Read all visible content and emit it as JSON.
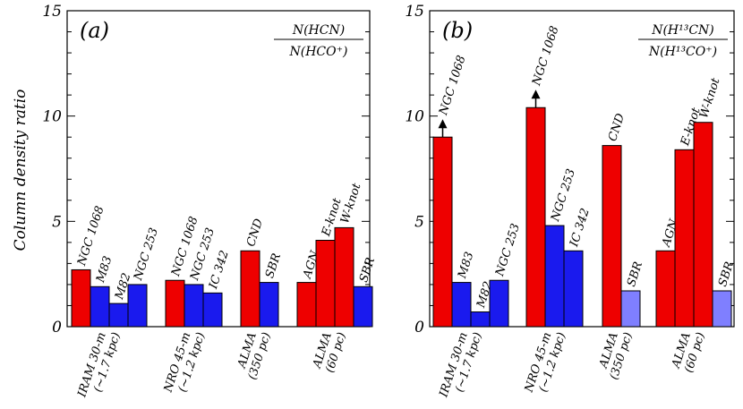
{
  "ylabel": "Column density ratio",
  "chart_data": [
    {
      "type": "bar",
      "panel_label": "(a)",
      "ratio_numerator": "N(HCN)",
      "ratio_denominator": "N(HCO⁺)",
      "ylim": [
        0,
        15
      ],
      "yticks": [
        "0",
        "5",
        "10",
        "15"
      ],
      "groups": [
        {
          "label_line1": "IRAM 30-m",
          "label_line2": "(~1.7 kpc)",
          "bars": [
            {
              "name": "NGC 1068",
              "value": 2.7,
              "color": "#ee0000"
            },
            {
              "name": "M83",
              "value": 1.9,
              "color": "#1a1aee"
            },
            {
              "name": "M82",
              "value": 1.1,
              "color": "#1a1aee"
            },
            {
              "name": "NGC 253",
              "value": 2.0,
              "color": "#1a1aee"
            }
          ]
        },
        {
          "label_line1": "NRO 45-m",
          "label_line2": "(~1.2 kpc)",
          "bars": [
            {
              "name": "NGC 1068",
              "value": 2.2,
              "color": "#ee0000"
            },
            {
              "name": "NGC 253",
              "value": 2.0,
              "color": "#1a1aee"
            },
            {
              "name": "IC 342",
              "value": 1.6,
              "color": "#1a1aee"
            }
          ]
        },
        {
          "label_line1": "ALMA",
          "label_line2": "(350 pc)",
          "bars": [
            {
              "name": "CND",
              "value": 3.6,
              "color": "#ee0000"
            },
            {
              "name": "SBR",
              "value": 2.1,
              "color": "#1a1aee"
            }
          ]
        },
        {
          "label_line1": "ALMA",
          "label_line2": "(60 pc)",
          "bars": [
            {
              "name": "AGN",
              "value": 2.1,
              "color": "#ee0000"
            },
            {
              "name": "E-knot",
              "value": 4.1,
              "color": "#ee0000"
            },
            {
              "name": "W-knot",
              "value": 4.7,
              "color": "#ee0000"
            },
            {
              "name": "SBR",
              "value": 1.9,
              "color": "#1a1aee"
            }
          ]
        }
      ]
    },
    {
      "type": "bar",
      "panel_label": "(b)",
      "ratio_numerator": "N(H¹³CN)",
      "ratio_denominator": "N(H¹³CO⁺)",
      "ylim": [
        0,
        15
      ],
      "yticks": [
        "0",
        "5",
        "10",
        "15"
      ],
      "groups": [
        {
          "label_line1": "IRAM 30-m",
          "label_line2": "(~1.7 kpc)",
          "bars": [
            {
              "name": "NGC 1068",
              "value": 9.0,
              "color": "#ee0000",
              "lower_limit": true
            },
            {
              "name": "M83",
              "value": 2.1,
              "color": "#1a1aee"
            },
            {
              "name": "M82",
              "value": 0.7,
              "color": "#1a1aee"
            },
            {
              "name": "NGC 253",
              "value": 2.2,
              "color": "#1a1aee"
            }
          ]
        },
        {
          "label_line1": "NRO 45-m",
          "label_line2": "(~1.2 kpc)",
          "bars": [
            {
              "name": "NGC 1068",
              "value": 10.4,
              "color": "#ee0000",
              "lower_limit": true
            },
            {
              "name": "NGC 253",
              "value": 4.8,
              "color": "#1a1aee"
            },
            {
              "name": "IC 342",
              "value": 3.6,
              "color": "#1a1aee"
            }
          ]
        },
        {
          "label_line1": "ALMA",
          "label_line2": "(350 pc)",
          "bars": [
            {
              "name": "CND",
              "value": 8.6,
              "color": "#ee0000"
            },
            {
              "name": "SBR",
              "value": 1.7,
              "color": "#7f7fff"
            }
          ]
        },
        {
          "label_line1": "ALMA",
          "label_line2": "(60 pc)",
          "bars": [
            {
              "name": "AGN",
              "value": 3.6,
              "color": "#ee0000"
            },
            {
              "name": "E-knot",
              "value": 8.4,
              "color": "#ee0000"
            },
            {
              "name": "W-knot",
              "value": 9.7,
              "color": "#ee0000"
            },
            {
              "name": "SBR",
              "value": 1.7,
              "color": "#7f7fff"
            }
          ]
        }
      ]
    }
  ]
}
